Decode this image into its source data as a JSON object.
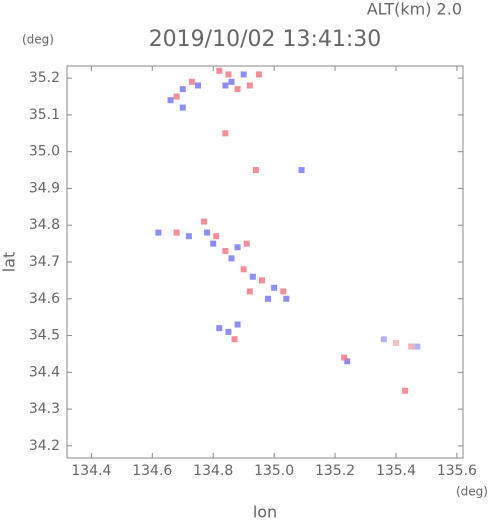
{
  "chart_data": {
    "type": "scatter",
    "title": "2019/10/02 13:41:30",
    "subtitle": "ALT(km)  2.0",
    "x_unit": "(deg)",
    "y_unit": "(deg)",
    "x_label": "lon",
    "y_label": "lat",
    "xlim": [
      134.32,
      135.62
    ],
    "ylim": [
      34.167,
      35.233
    ],
    "xticks": [
      134.4,
      134.6,
      134.8,
      {
        "value": 135,
        "label": "135.0"
      },
      135.2,
      135.4,
      135.6
    ],
    "yticks": [
      34.2,
      34.3,
      34.4,
      34.5,
      34.6,
      34.7,
      34.8,
      34.9,
      {
        "value": 35,
        "label": "35.0"
      },
      35.1,
      35.2
    ],
    "x": [
      134.73,
      134.75,
      134.7,
      134.68,
      134.66,
      134.7,
      134.82,
      134.85,
      134.9,
      134.95,
      134.86,
      134.92,
      134.84,
      134.88,
      134.84,
      134.94,
      135.09,
      134.62,
      134.68,
      134.72,
      134.77,
      134.78,
      134.81,
      134.8,
      134.84,
      134.88,
      134.91,
      134.86,
      134.9,
      134.93,
      134.96,
      135.0,
      135.03,
      134.98,
      135.04,
      134.92,
      134.85,
      134.87,
      134.82,
      134.88,
      135.24,
      135.23,
      135.36,
      135.4,
      135.45,
      135.47,
      135.43
    ],
    "y": [
      35.19,
      35.18,
      35.17,
      35.15,
      35.14,
      35.12,
      35.22,
      35.21,
      35.21,
      35.21,
      35.19,
      35.18,
      35.18,
      35.17,
      35.05,
      34.95,
      34.95,
      34.78,
      34.78,
      34.77,
      34.81,
      34.78,
      34.77,
      34.75,
      34.73,
      34.74,
      34.75,
      34.71,
      34.68,
      34.66,
      34.65,
      34.63,
      34.62,
      34.6,
      34.6,
      34.62,
      34.51,
      34.49,
      34.52,
      34.53,
      34.43,
      34.44,
      34.49,
      34.48,
      34.47,
      34.47,
      34.35
    ],
    "colors": [
      "#f07080",
      "#7070f0",
      "#7070f0",
      "#f07080",
      "#7070f0",
      "#7070f0",
      "#f07080",
      "#f07080",
      "#7070f0",
      "#f07080",
      "#7070f0",
      "#f07080",
      "#7070f0",
      "#f07080",
      "#f07080",
      "#f07080",
      "#7070f0",
      "#7070f0",
      "#f07080",
      "#7070f0",
      "#f07080",
      "#7070f0",
      "#f07080",
      "#7070f0",
      "#f07080",
      "#7070f0",
      "#f07080",
      "#7070f0",
      "#f07080",
      "#7070f0",
      "#f07080",
      "#7070f0",
      "#f07080",
      "#7070f0",
      "#7070f0",
      "#f07080",
      "#7070f0",
      "#f07080",
      "#7070f0",
      "#7070f0",
      "#7070f0",
      "#f07080",
      "#a0a0f0",
      "#f0b0b0",
      "#f0a0a0",
      "#a0a0f0",
      "#f07080"
    ]
  }
}
